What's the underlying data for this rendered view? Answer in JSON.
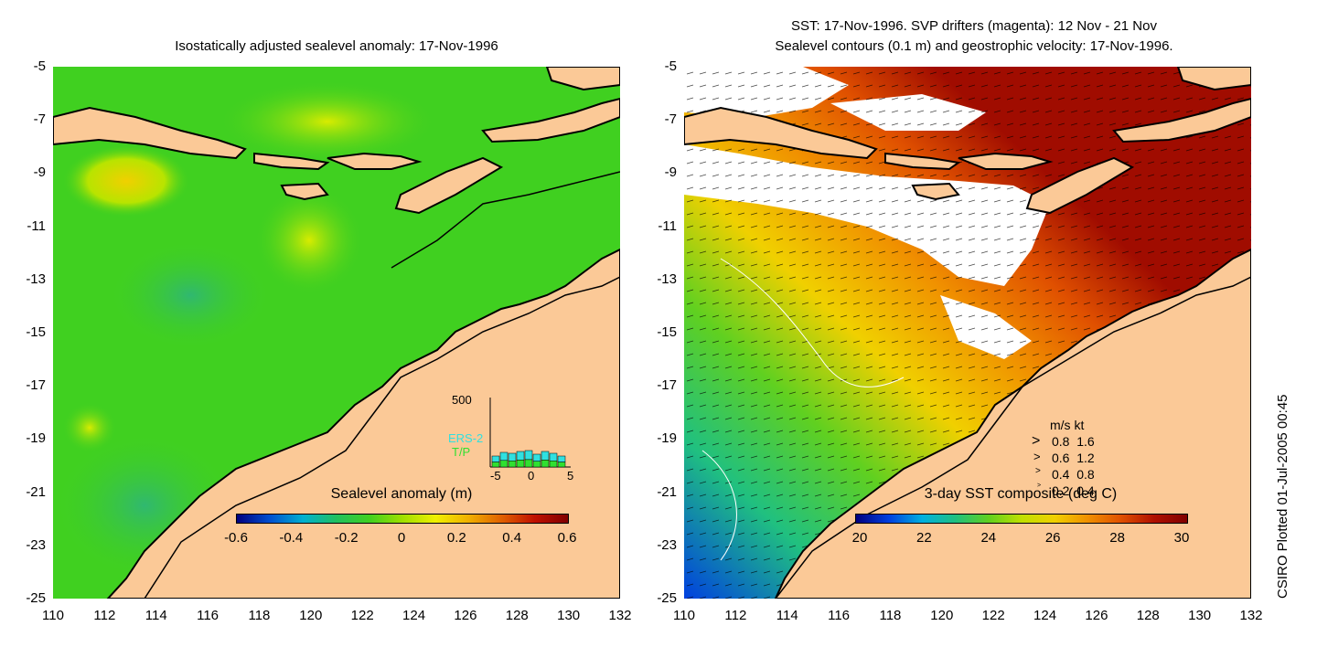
{
  "left_panel": {
    "title": "Isostatically adjusted sealevel anomaly: 17-Nov-1996",
    "colorbar_label": "Sealevel anomaly (m)",
    "colorbar_ticks": [
      "-0.6",
      "-0.4",
      "-0.2",
      "0",
      "0.2",
      "0.4",
      "0.6"
    ],
    "colorbar_colors": [
      "#00007f",
      "#0050d0",
      "#00b0d0",
      "#20c060",
      "#40d020",
      "#9fe000",
      "#f0f000",
      "#f0b000",
      "#e06000",
      "#c01000",
      "#800000"
    ],
    "histogram": {
      "ymax_label": "500",
      "xticks": [
        "-5",
        "0",
        "5"
      ],
      "legend": [
        {
          "label": "ERS-2",
          "color": "#30e0e0"
        },
        {
          "label": "T/P",
          "color": "#30e030"
        }
      ]
    }
  },
  "right_panel": {
    "title_line1": "SST: 17-Nov-1996. SVP drifters (magenta): 12 Nov - 21 Nov",
    "title_line2": "Sealevel contours (0.1 m) and geostrophic velocity: 17-Nov-1996.",
    "colorbar_label": "3-day SST composite (deg C)",
    "colorbar_ticks": [
      "20",
      "22",
      "24",
      "26",
      "28",
      "30"
    ],
    "colorbar_colors": [
      "#00007f",
      "#0040e0",
      "#00b0e0",
      "#20c080",
      "#60d020",
      "#c0e000",
      "#f0d000",
      "#f09000",
      "#e05000",
      "#b01000",
      "#800000"
    ],
    "velocity_legend": {
      "header": "m/s  kt",
      "rows": [
        "0.8  1.6",
        "0.6  1.2",
        "0.4  0.8",
        "0.2  0.4"
      ]
    }
  },
  "axes": {
    "y_ticks": [
      "-5",
      "-7",
      "-9",
      "-11",
      "-13",
      "-15",
      "-17",
      "-19",
      "-21",
      "-23",
      "-25"
    ],
    "x_ticks": [
      "110",
      "112",
      "114",
      "116",
      "118",
      "120",
      "122",
      "124",
      "126",
      "128",
      "130",
      "132"
    ]
  },
  "credit": "CSIRO Plotted 01-Jul-2005 00:45",
  "colors": {
    "land": "#fbc997",
    "coast": "#000000",
    "ocean_green": "#40d020",
    "sst_warm": "#a00c00"
  }
}
